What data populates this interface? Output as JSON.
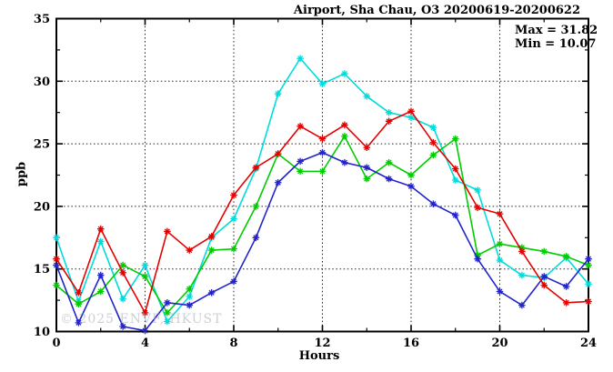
{
  "window": {
    "background": "#ffffff"
  },
  "chart_data": {
    "type": "line",
    "title": "Airport, Sha Chau, O3 20200619-20200622",
    "xlabel": "Hours",
    "ylabel": "ppb",
    "xlim": [
      0,
      24
    ],
    "ylim": [
      10,
      35
    ],
    "x_major_ticks": [
      0,
      4,
      8,
      12,
      16,
      20,
      24
    ],
    "x_tick_labels": [
      "0",
      "4",
      "8",
      "12",
      "16",
      "20",
      "24"
    ],
    "x_minor_tick_step": 2,
    "y_major_ticks": [
      10,
      15,
      20,
      25,
      30,
      35
    ],
    "y_tick_labels": [
      "10",
      "15",
      "20",
      "25",
      "30",
      "35"
    ],
    "y_minor_tick_step": 2.5,
    "grid": {
      "style": "dotted",
      "horizontal_at": [
        15,
        20,
        25,
        30
      ],
      "vertical_at": [
        4,
        8,
        12,
        16,
        20
      ]
    },
    "legend": "none",
    "marker": "asterisk",
    "x": [
      0,
      1,
      2,
      3,
      4,
      5,
      6,
      7,
      8,
      9,
      10,
      11,
      12,
      13,
      14,
      15,
      16,
      17,
      18,
      19,
      20,
      21,
      22,
      23,
      24
    ],
    "series": [
      {
        "name": "cyan-series",
        "color": "#00dcdc",
        "values": [
          17.5,
          12.4,
          17.2,
          12.6,
          15.3,
          10.8,
          12.8,
          17.5,
          19.0,
          23.0,
          29.0,
          31.82,
          29.8,
          30.6,
          28.8,
          27.5,
          27.1,
          26.3,
          22.1,
          21.3,
          15.7,
          14.5,
          14.3,
          15.9,
          13.8
        ]
      },
      {
        "name": "green-series",
        "color": "#00cc00",
        "values": [
          13.7,
          12.2,
          13.2,
          15.3,
          14.4,
          11.5,
          13.4,
          16.5,
          16.6,
          20.0,
          24.2,
          22.8,
          22.8,
          25.6,
          22.2,
          23.5,
          22.5,
          24.1,
          25.4,
          16.1,
          17.0,
          16.7,
          16.4,
          16.0,
          15.3
        ]
      },
      {
        "name": "blue-series",
        "color": "#2323cc",
        "values": [
          15.3,
          10.7,
          14.5,
          10.4,
          10.07,
          12.3,
          12.1,
          13.1,
          14.0,
          17.5,
          21.9,
          23.6,
          24.3,
          23.5,
          23.1,
          22.2,
          21.6,
          20.2,
          19.3,
          15.8,
          13.2,
          12.1,
          14.4,
          13.6,
          15.8
        ]
      },
      {
        "name": "red-series",
        "color": "#e60000",
        "values": [
          15.8,
          13.1,
          18.2,
          14.7,
          11.5,
          18.0,
          16.5,
          17.6,
          20.9,
          23.1,
          24.2,
          26.4,
          25.4,
          26.5,
          24.7,
          26.8,
          27.6,
          25.1,
          23.0,
          19.9,
          19.4,
          16.4,
          13.7,
          12.3,
          12.4
        ]
      }
    ],
    "annotations": {
      "max_label": "Max = 31.82",
      "min_label": "Min = 10.07"
    },
    "watermark": "© 2025 ENVF, HKUST"
  }
}
